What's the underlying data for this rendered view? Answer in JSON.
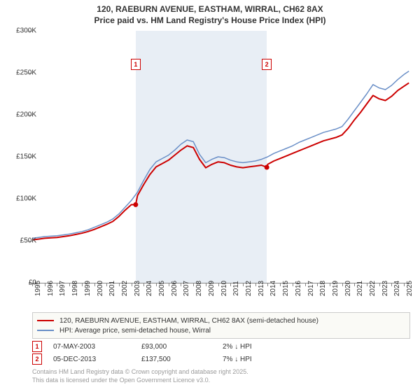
{
  "title_line1": "120, RAEBURN AVENUE, EASTHAM, WIRRAL, CH62 8AX",
  "title_line2": "Price paid vs. HM Land Registry's House Price Index (HPI)",
  "chart": {
    "type": "line",
    "background_color": "#ffffff",
    "band_color": "#e8eef5",
    "axis_color": "#888888",
    "x_min": 1995,
    "x_max": 2025.5,
    "y_min": 0,
    "y_max": 300000,
    "y_ticks": [
      0,
      50000,
      100000,
      150000,
      200000,
      250000,
      300000
    ],
    "y_tick_labels": [
      "£0",
      "£50K",
      "£100K",
      "£150K",
      "£200K",
      "£250K",
      "£300K"
    ],
    "x_ticks": [
      1995,
      1996,
      1997,
      1998,
      1999,
      2000,
      2001,
      2002,
      2003,
      2004,
      2005,
      2006,
      2007,
      2008,
      2009,
      2010,
      2011,
      2012,
      2013,
      2014,
      2015,
      2016,
      2017,
      2018,
      2019,
      2020,
      2021,
      2022,
      2023,
      2024,
      2025
    ],
    "band_start": 2003.35,
    "band_end": 2013.93,
    "series": [
      {
        "name": "hpi",
        "color": "#6a8fc7",
        "width": 1.5,
        "data": [
          [
            1995,
            53000
          ],
          [
            1995.5,
            54000
          ],
          [
            1996,
            55000
          ],
          [
            1996.5,
            55500
          ],
          [
            1997,
            56000
          ],
          [
            1997.5,
            57000
          ],
          [
            1998,
            58000
          ],
          [
            1998.5,
            59500
          ],
          [
            1999,
            61000
          ],
          [
            1999.5,
            63000
          ],
          [
            2000,
            66000
          ],
          [
            2000.5,
            69000
          ],
          [
            2001,
            72000
          ],
          [
            2001.5,
            76000
          ],
          [
            2002,
            82000
          ],
          [
            2002.5,
            90000
          ],
          [
            2003,
            98000
          ],
          [
            2003.5,
            108000
          ],
          [
            2004,
            122000
          ],
          [
            2004.5,
            135000
          ],
          [
            2005,
            144000
          ],
          [
            2005.5,
            148000
          ],
          [
            2006,
            152000
          ],
          [
            2006.5,
            158000
          ],
          [
            2007,
            165000
          ],
          [
            2007.5,
            170000
          ],
          [
            2008,
            168000
          ],
          [
            2008.5,
            153000
          ],
          [
            2009,
            143000
          ],
          [
            2009.5,
            147000
          ],
          [
            2010,
            150000
          ],
          [
            2010.5,
            149000
          ],
          [
            2011,
            146000
          ],
          [
            2011.5,
            144000
          ],
          [
            2012,
            143000
          ],
          [
            2012.5,
            144000
          ],
          [
            2013,
            145000
          ],
          [
            2013.5,
            147000
          ],
          [
            2014,
            150000
          ],
          [
            2014.5,
            154000
          ],
          [
            2015,
            157000
          ],
          [
            2015.5,
            160000
          ],
          [
            2016,
            163000
          ],
          [
            2016.5,
            167000
          ],
          [
            2017,
            170000
          ],
          [
            2017.5,
            173000
          ],
          [
            2018,
            176000
          ],
          [
            2018.5,
            179000
          ],
          [
            2019,
            181000
          ],
          [
            2019.5,
            183000
          ],
          [
            2020,
            186000
          ],
          [
            2020.5,
            195000
          ],
          [
            2021,
            205000
          ],
          [
            2021.5,
            215000
          ],
          [
            2022,
            225000
          ],
          [
            2022.5,
            236000
          ],
          [
            2023,
            232000
          ],
          [
            2023.5,
            230000
          ],
          [
            2024,
            235000
          ],
          [
            2024.5,
            242000
          ],
          [
            2025,
            248000
          ],
          [
            2025.4,
            252000
          ]
        ]
      },
      {
        "name": "property",
        "color": "#cc0000",
        "width": 2,
        "data": [
          [
            1995,
            51000
          ],
          [
            1995.5,
            52000
          ],
          [
            1996,
            53000
          ],
          [
            1996.5,
            53500
          ],
          [
            1997,
            54000
          ],
          [
            1997.5,
            55000
          ],
          [
            1998,
            56000
          ],
          [
            1998.5,
            57500
          ],
          [
            1999,
            59000
          ],
          [
            1999.5,
            61000
          ],
          [
            2000,
            63500
          ],
          [
            2000.5,
            66500
          ],
          [
            2001,
            69500
          ],
          [
            2001.5,
            73000
          ],
          [
            2002,
            79000
          ],
          [
            2002.5,
            86500
          ],
          [
            2003,
            93000
          ],
          [
            2003.35,
            93000
          ],
          [
            2003.5,
            104000
          ],
          [
            2004,
            117000
          ],
          [
            2004.5,
            129000
          ],
          [
            2005,
            138000
          ],
          [
            2005.5,
            142000
          ],
          [
            2006,
            146000
          ],
          [
            2006.5,
            152000
          ],
          [
            2007,
            158000
          ],
          [
            2007.5,
            163000
          ],
          [
            2008,
            161000
          ],
          [
            2008.5,
            147000
          ],
          [
            2009,
            137000
          ],
          [
            2009.5,
            141000
          ],
          [
            2010,
            144000
          ],
          [
            2010.5,
            143000
          ],
          [
            2011,
            140000
          ],
          [
            2011.5,
            138000
          ],
          [
            2012,
            137000
          ],
          [
            2012.5,
            138000
          ],
          [
            2013,
            139000
          ],
          [
            2013.5,
            140000
          ],
          [
            2013.93,
            137500
          ],
          [
            2014,
            141000
          ],
          [
            2014.5,
            145000
          ],
          [
            2015,
            148000
          ],
          [
            2015.5,
            151000
          ],
          [
            2016,
            154000
          ],
          [
            2016.5,
            157000
          ],
          [
            2017,
            160000
          ],
          [
            2017.5,
            163000
          ],
          [
            2018,
            166000
          ],
          [
            2018.5,
            169000
          ],
          [
            2019,
            171000
          ],
          [
            2019.5,
            173000
          ],
          [
            2020,
            176000
          ],
          [
            2020.5,
            184000
          ],
          [
            2021,
            194000
          ],
          [
            2021.5,
            203000
          ],
          [
            2022,
            213000
          ],
          [
            2022.5,
            223000
          ],
          [
            2023,
            219000
          ],
          [
            2023.5,
            217000
          ],
          [
            2024,
            222000
          ],
          [
            2024.5,
            229000
          ],
          [
            2025,
            234000
          ],
          [
            2025.4,
            238000
          ]
        ]
      }
    ],
    "event_markers": [
      {
        "n": "1",
        "x": 2003.35,
        "y_chart": 260000
      },
      {
        "n": "2",
        "x": 2013.93,
        "y_chart": 260000
      }
    ],
    "sale_points": [
      {
        "x": 2003.35,
        "y": 93000,
        "color": "#cc0000"
      },
      {
        "x": 2013.93,
        "y": 137500,
        "color": "#cc0000"
      }
    ]
  },
  "legend": {
    "items": [
      {
        "color": "#cc0000",
        "label": "120, RAEBURN AVENUE, EASTHAM, WIRRAL, CH62 8AX (semi-detached house)"
      },
      {
        "color": "#6a8fc7",
        "label": "HPI: Average price, semi-detached house, Wirral"
      }
    ]
  },
  "events": [
    {
      "n": "1",
      "date": "07-MAY-2003",
      "price": "£93,000",
      "pct": "2% ↓ HPI"
    },
    {
      "n": "2",
      "date": "05-DEC-2013",
      "price": "£137,500",
      "pct": "7% ↓ HPI"
    }
  ],
  "attribution_line1": "Contains HM Land Registry data © Crown copyright and database right 2025.",
  "attribution_line2": "This data is licensed under the Open Government Licence v3.0."
}
